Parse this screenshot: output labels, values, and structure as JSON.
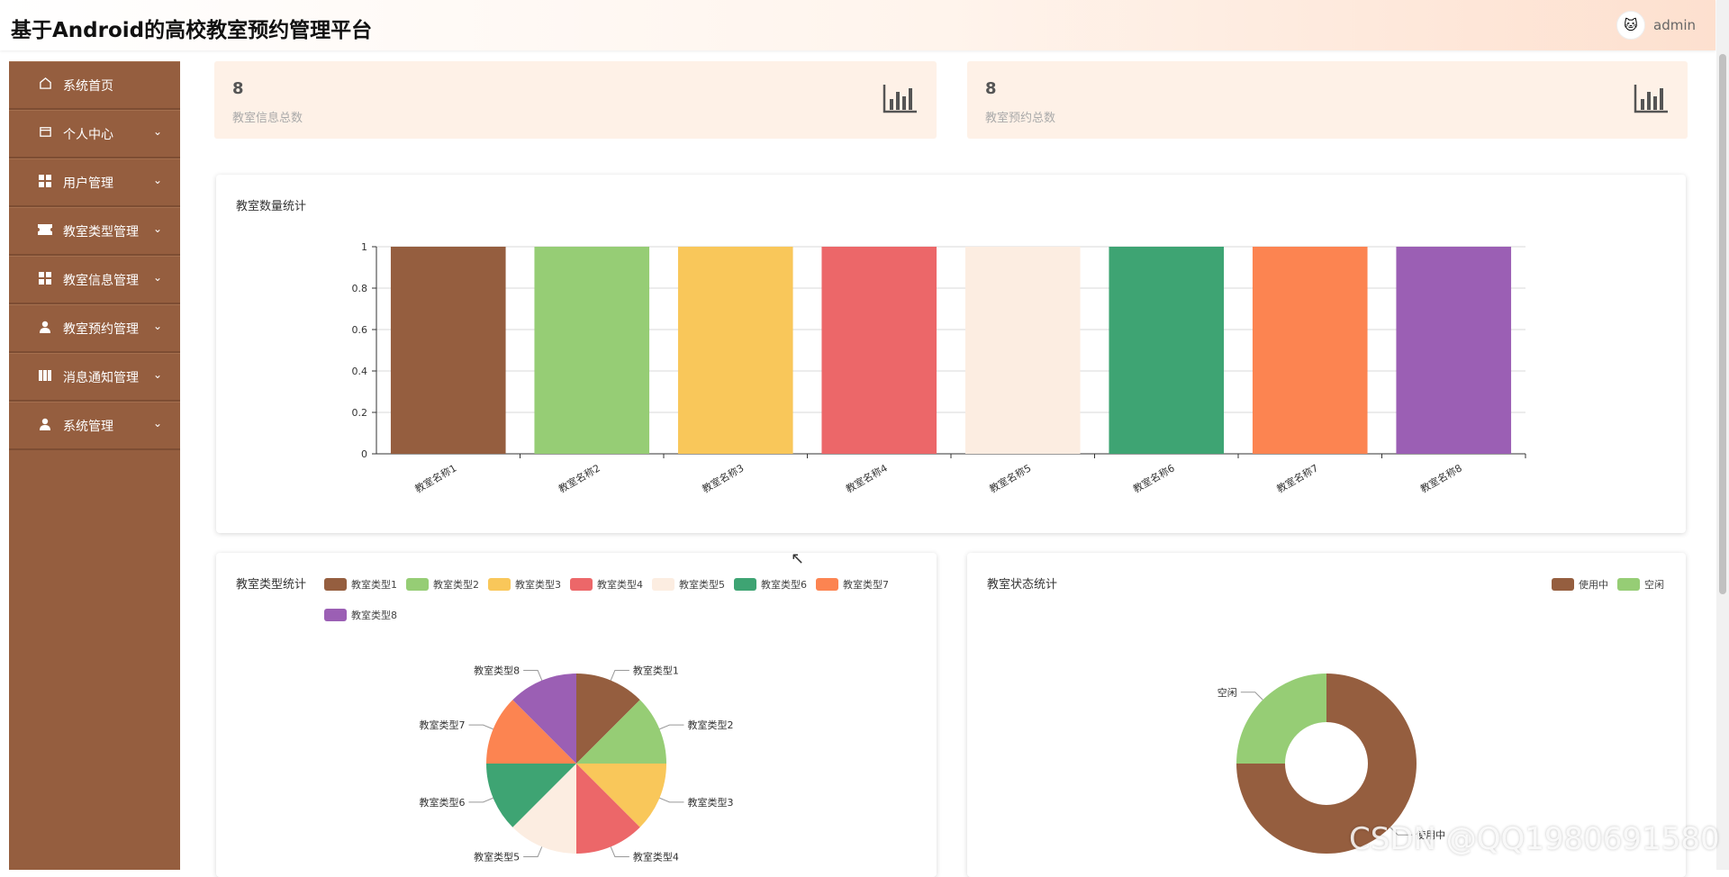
{
  "header": {
    "title": "基于Android的高校教室预约管理平台",
    "user_name": "admin",
    "avatar_icon": "cartoon-avatar"
  },
  "sidebar": {
    "items": [
      {
        "label": "系统首页",
        "icon": "home-icon",
        "has_arrow": false
      },
      {
        "label": "个人中心",
        "icon": "wallet-icon",
        "has_arrow": true
      },
      {
        "label": "用户管理",
        "icon": "grid-icon",
        "has_arrow": true
      },
      {
        "label": "教室类型管理",
        "icon": "ticket-icon",
        "has_arrow": true
      },
      {
        "label": "教室信息管理",
        "icon": "grid-icon",
        "has_arrow": true
      },
      {
        "label": "教室预约管理",
        "icon": "user-icon",
        "has_arrow": true
      },
      {
        "label": "消息通知管理",
        "icon": "book-icon",
        "has_arrow": true
      },
      {
        "label": "系统管理",
        "icon": "user-icon",
        "has_arrow": true
      }
    ]
  },
  "stats": [
    {
      "value": "8",
      "label": "教室信息总数"
    },
    {
      "value": "8",
      "label": "教室预约总数"
    }
  ],
  "colors": {
    "sidebar": "#955e3f",
    "card": "#fef1e7",
    "palette": [
      "#955e3f",
      "#96cd75",
      "#f9c75a",
      "#ec6769",
      "#fcede1",
      "#3ea473",
      "#fc8451",
      "#9b5fb4"
    ]
  },
  "bar_panel_title": "教室数量统计",
  "pie_panel_title": "教室类型统计",
  "donut_panel_title": "教室状态统计",
  "watermark": "CSDN @QQ1980691580",
  "chart_data": [
    {
      "type": "bar",
      "title": "教室数量统计",
      "categories": [
        "教室名称1",
        "教室名称2",
        "教室名称3",
        "教室名称4",
        "教室名称5",
        "教室名称6",
        "教室名称7",
        "教室名称8"
      ],
      "values": [
        1,
        1,
        1,
        1,
        1,
        1,
        1,
        1
      ],
      "ylim": [
        0,
        1
      ],
      "yticks": [
        "0",
        "0.2",
        "0.4",
        "0.6",
        "0.8",
        "1"
      ],
      "grid": true
    },
    {
      "type": "pie",
      "title": "教室类型统计",
      "labels": [
        "教室类型1",
        "教室类型2",
        "教室类型3",
        "教室类型4",
        "教室类型5",
        "教室类型6",
        "教室类型7",
        "教室类型8"
      ],
      "values": [
        1,
        1,
        1,
        1,
        1,
        1,
        1,
        1
      ],
      "legend": "top"
    },
    {
      "type": "pie",
      "title": "教室状态统计",
      "labels": [
        "使用中",
        "空闲"
      ],
      "values": [
        3,
        1
      ],
      "legend": "top-right"
    }
  ]
}
